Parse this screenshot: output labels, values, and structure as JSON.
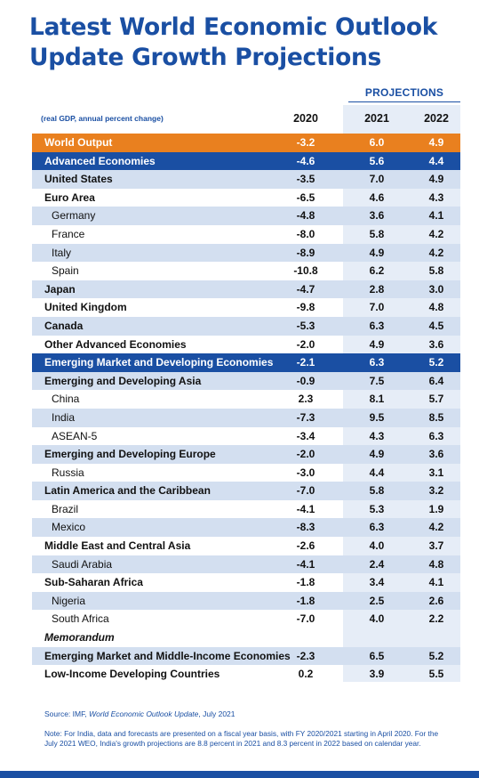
{
  "title_line1": "Latest World Economic Outlook",
  "title_line2": "Update Growth Projections",
  "projections_label": "PROJECTIONS",
  "unit_note": "(real GDP, annual percent change)",
  "years": [
    "2020",
    "2021",
    "2022"
  ],
  "source_prefix": "Source: IMF, ",
  "source_title": "World Economic Outlook Update",
  "source_suffix": ", July 2021",
  "note": "Note: For India, data and forecasts are presented on a fiscal year basis, with FY 2020/2021 starting in April 2020. For the July 2021 WEO, India's growth projections are 8.8 percent in 2021 and 8.3 percent in 2022 based on calendar year.",
  "colors": {
    "brand_blue": "#1a4fa3",
    "highlight_orange": "#e9801f",
    "row_shade": "#d3dff0",
    "projection_band": "#e6edf7"
  },
  "chart_data": {
    "type": "table",
    "columns": [
      "2020",
      "2021",
      "2022"
    ],
    "rows": [
      {
        "name": "World Output",
        "values": [
          "-3.2",
          "6.0",
          "4.9"
        ],
        "style": "orange"
      },
      {
        "name": "Advanced Economies",
        "values": [
          "-4.6",
          "5.6",
          "4.4"
        ],
        "style": "blue"
      },
      {
        "name": "United States",
        "values": [
          "-3.5",
          "7.0",
          "4.9"
        ],
        "style": "bold shade"
      },
      {
        "name": "Euro Area",
        "values": [
          "-6.5",
          "4.6",
          "4.3"
        ],
        "style": "bold"
      },
      {
        "name": "Germany",
        "values": [
          "-4.8",
          "3.6",
          "4.1"
        ],
        "style": "indent shade"
      },
      {
        "name": "France",
        "values": [
          "-8.0",
          "5.8",
          "4.2"
        ],
        "style": "indent"
      },
      {
        "name": "Italy",
        "values": [
          "-8.9",
          "4.9",
          "4.2"
        ],
        "style": "indent shade"
      },
      {
        "name": "Spain",
        "values": [
          "-10.8",
          "6.2",
          "5.8"
        ],
        "style": "indent"
      },
      {
        "name": "Japan",
        "values": [
          "-4.7",
          "2.8",
          "3.0"
        ],
        "style": "bold shade"
      },
      {
        "name": "United Kingdom",
        "values": [
          "-9.8",
          "7.0",
          "4.8"
        ],
        "style": "bold"
      },
      {
        "name": "Canada",
        "values": [
          "-5.3",
          "6.3",
          "4.5"
        ],
        "style": "bold shade"
      },
      {
        "name": "Other Advanced Economies",
        "values": [
          "-2.0",
          "4.9",
          "3.6"
        ],
        "style": "bold"
      },
      {
        "name": "Emerging Market and Developing Economies",
        "values": [
          "-2.1",
          "6.3",
          "5.2"
        ],
        "style": "blue"
      },
      {
        "name": "Emerging and Developing Asia",
        "values": [
          "-0.9",
          "7.5",
          "6.4"
        ],
        "style": "bold shade"
      },
      {
        "name": "China",
        "values": [
          "2.3",
          "8.1",
          "5.7"
        ],
        "style": "indent"
      },
      {
        "name": "India",
        "values": [
          "-7.3",
          "9.5",
          "8.5"
        ],
        "style": "indent shade"
      },
      {
        "name": "ASEAN-5",
        "values": [
          "-3.4",
          "4.3",
          "6.3"
        ],
        "style": "indent"
      },
      {
        "name": "Emerging and Developing Europe",
        "values": [
          "-2.0",
          "4.9",
          "3.6"
        ],
        "style": "bold shade"
      },
      {
        "name": "Russia",
        "values": [
          "-3.0",
          "4.4",
          "3.1"
        ],
        "style": "indent"
      },
      {
        "name": "Latin America and the Caribbean",
        "values": [
          "-7.0",
          "5.8",
          "3.2"
        ],
        "style": "bold shade"
      },
      {
        "name": "Brazil",
        "values": [
          "-4.1",
          "5.3",
          "1.9"
        ],
        "style": "indent"
      },
      {
        "name": "Mexico",
        "values": [
          "-8.3",
          "6.3",
          "4.2"
        ],
        "style": "indent shade"
      },
      {
        "name": "Middle East and Central Asia",
        "values": [
          "-2.6",
          "4.0",
          "3.7"
        ],
        "style": "bold"
      },
      {
        "name": "Saudi Arabia",
        "values": [
          "-4.1",
          "2.4",
          "4.8"
        ],
        "style": "indent shade"
      },
      {
        "name": "Sub-Saharan Africa",
        "values": [
          "-1.8",
          "3.4",
          "4.1"
        ],
        "style": "bold"
      },
      {
        "name": "Nigeria",
        "values": [
          "-1.8",
          "2.5",
          "2.6"
        ],
        "style": "indent shade"
      },
      {
        "name": "South Africa",
        "values": [
          "-7.0",
          "4.0",
          "2.2"
        ],
        "style": "indent"
      },
      {
        "name": "Memorandum",
        "values": [
          "",
          "",
          ""
        ],
        "style": "memo"
      },
      {
        "name": "Emerging Market and Middle-Income Economies",
        "values": [
          "-2.3",
          "6.5",
          "5.2"
        ],
        "style": "bold shade"
      },
      {
        "name": "Low-Income Developing Countries",
        "values": [
          "0.2",
          "3.9",
          "5.5"
        ],
        "style": "bold"
      }
    ]
  }
}
